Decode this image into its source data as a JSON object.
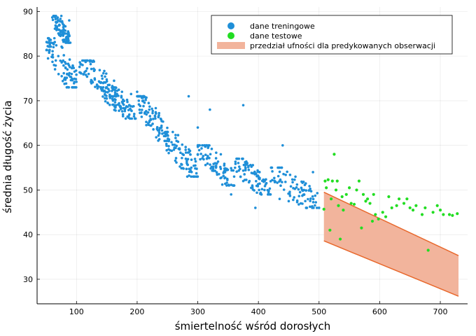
{
  "chart_data": {
    "type": "scatter",
    "title": "",
    "xlabel": "śmiertelność wśród dorosłych",
    "ylabel": "średnia długość życia",
    "xlim": [
      35,
      745
    ],
    "ylim": [
      24.5,
      91
    ],
    "xticks": [
      100,
      200,
      300,
      400,
      500,
      600,
      700
    ],
    "yticks": [
      30,
      40,
      50,
      60,
      70,
      80,
      90
    ],
    "grid": true,
    "legend_position": "top-right",
    "series": [
      {
        "name": "dane treningowe",
        "kind": "scatter",
        "color": "#1f8fd8",
        "clusters": [
          {
            "x": [
              60,
              90
            ],
            "y": [
              83,
              89
            ]
          },
          {
            "x": [
              50,
              100
            ],
            "y": [
              73,
              84
            ]
          },
          {
            "x": [
              105,
              170
            ],
            "y": [
              71,
              79
            ]
          },
          {
            "x": [
              140,
              200
            ],
            "y": [
              66,
              73
            ]
          },
          {
            "x": [
              200,
              250
            ],
            "y": [
              61,
              71
            ]
          },
          {
            "x": [
              245,
              300
            ],
            "y": [
              53,
              63
            ]
          },
          {
            "x": [
              300,
              360
            ],
            "y": [
              51,
              60
            ]
          },
          {
            "x": [
              360,
              420
            ],
            "y": [
              49,
              57
            ]
          },
          {
            "x": [
              420,
              500
            ],
            "y": [
              46,
              55
            ]
          }
        ],
        "points": [
          [
            55,
            83.5
          ],
          [
            62,
            82
          ],
          [
            70,
            80
          ],
          [
            78,
            79
          ],
          [
            85,
            77
          ],
          [
            92,
            76
          ],
          [
            75,
            89
          ],
          [
            88,
            88
          ],
          [
            110,
            78
          ],
          [
            120,
            76
          ],
          [
            130,
            75
          ],
          [
            140,
            74
          ],
          [
            150,
            73
          ],
          [
            160,
            72.5
          ],
          [
            175,
            72
          ],
          [
            190,
            71.5
          ],
          [
            200,
            72
          ],
          [
            210,
            70
          ],
          [
            220,
            68
          ],
          [
            230,
            66
          ],
          [
            240,
            64
          ],
          [
            250,
            63
          ],
          [
            265,
            61
          ],
          [
            280,
            59
          ],
          [
            285,
            71
          ],
          [
            300,
            58
          ],
          [
            315,
            57
          ],
          [
            330,
            55
          ],
          [
            345,
            54
          ],
          [
            360,
            53
          ],
          [
            375,
            52
          ],
          [
            390,
            51
          ],
          [
            400,
            53
          ],
          [
            410,
            50
          ],
          [
            420,
            49
          ],
          [
            435,
            48
          ],
          [
            450,
            47.5
          ],
          [
            470,
            47
          ],
          [
            480,
            46
          ],
          [
            490,
            54
          ],
          [
            300,
            64
          ],
          [
            320,
            68
          ],
          [
            375,
            69
          ],
          [
            440,
            60
          ],
          [
            338,
            58
          ],
          [
            395,
            46
          ],
          [
            355,
            49
          ],
          [
            360,
            51
          ]
        ]
      },
      {
        "name": "dane testowe",
        "kind": "scatter",
        "color": "#22dd22",
        "points": [
          [
            508,
            45.7
          ],
          [
            510,
            52
          ],
          [
            512,
            50.5
          ],
          [
            515,
            52.3
          ],
          [
            518,
            41
          ],
          [
            520,
            48
          ],
          [
            522,
            52
          ],
          [
            525,
            58
          ],
          [
            528,
            50
          ],
          [
            530,
            52
          ],
          [
            532,
            46.5
          ],
          [
            535,
            39
          ],
          [
            538,
            48.5
          ],
          [
            540,
            45.5
          ],
          [
            545,
            49
          ],
          [
            550,
            50.5
          ],
          [
            553,
            47
          ],
          [
            558,
            46.8
          ],
          [
            562,
            50
          ],
          [
            566,
            52
          ],
          [
            570,
            41.5
          ],
          [
            573,
            49
          ],
          [
            577,
            47.5
          ],
          [
            580,
            48
          ],
          [
            584,
            47
          ],
          [
            588,
            43
          ],
          [
            590,
            49
          ],
          [
            593,
            44.5
          ],
          [
            598,
            43.5
          ],
          [
            605,
            45
          ],
          [
            610,
            44
          ],
          [
            615,
            48.5
          ],
          [
            620,
            46
          ],
          [
            628,
            46.5
          ],
          [
            632,
            48
          ],
          [
            640,
            47
          ],
          [
            645,
            48
          ],
          [
            650,
            46
          ],
          [
            655,
            45.5
          ],
          [
            660,
            46.5
          ],
          [
            670,
            44.5
          ],
          [
            675,
            46
          ],
          [
            680,
            36.5
          ],
          [
            688,
            45
          ],
          [
            695,
            46.5
          ],
          [
            700,
            45.5
          ],
          [
            705,
            44.5
          ],
          [
            715,
            44.5
          ],
          [
            720,
            44.3
          ],
          [
            728,
            44.7
          ]
        ]
      },
      {
        "name": "przedział ufności dla predykowanych obserwacji",
        "kind": "band",
        "fill_color": "#f2b49c",
        "line_color": "#e8682c",
        "x": [
          508,
          730
        ],
        "upper": [
          49.5,
          35.3
        ],
        "lower": [
          38.6,
          26.2
        ]
      }
    ]
  }
}
